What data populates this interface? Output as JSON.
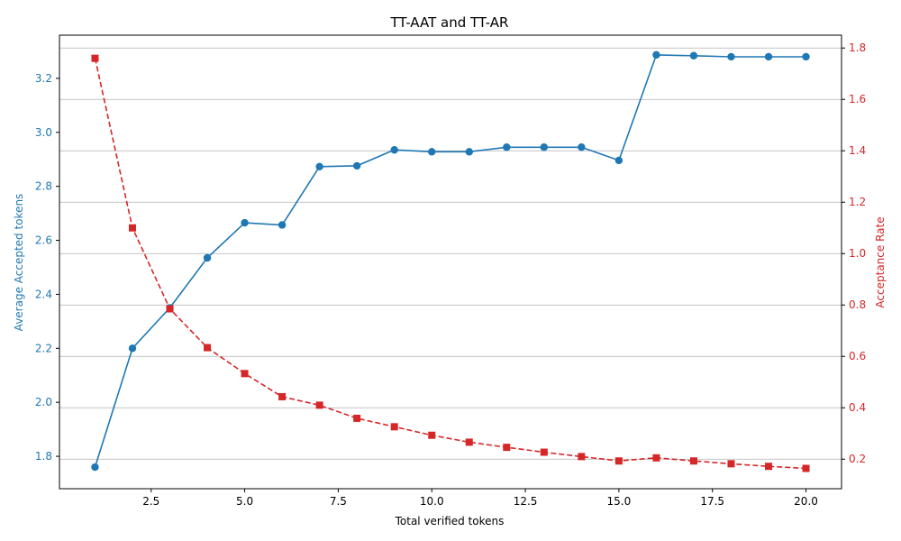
{
  "chart_data": {
    "type": "line",
    "title": "TT-AAT and TT-AR",
    "xlabel": "Total verified tokens",
    "ylabel_left": "Average Accepted tokens",
    "ylabel_right": "Acceptance Rate",
    "xlim": [
      0.05,
      20.95
    ],
    "ylim_left": [
      1.68,
      3.36
    ],
    "ylim_right": [
      0.085,
      1.85
    ],
    "x_ticks": [
      2.5,
      5.0,
      7.5,
      10.0,
      12.5,
      15.0,
      17.5,
      20.0
    ],
    "x_tick_labels": [
      "2.5",
      "5.0",
      "7.5",
      "10.0",
      "12.5",
      "15.0",
      "17.5",
      "20.0"
    ],
    "left_ticks": [
      1.8,
      2.0,
      2.2,
      2.4,
      2.6,
      2.8,
      3.0,
      3.2
    ],
    "left_tick_labels": [
      "1.8",
      "2.0",
      "2.2",
      "2.4",
      "2.6",
      "2.8",
      "3.0",
      "3.2"
    ],
    "right_ticks": [
      0.2,
      0.4,
      0.6,
      0.8,
      1.0,
      1.2,
      1.4,
      1.6,
      1.8
    ],
    "right_tick_labels": [
      "0.2",
      "0.4",
      "0.6",
      "0.8",
      "1.0",
      "1.2",
      "1.4",
      "1.6",
      "1.8"
    ],
    "grid": "horizontal lines on right axis",
    "x": [
      1,
      2,
      3,
      4,
      5,
      6,
      7,
      8,
      9,
      10,
      11,
      12,
      13,
      14,
      15,
      16,
      17,
      18,
      19,
      20
    ],
    "series": [
      {
        "axis": "left",
        "color": "#1f77b4",
        "marker": "circle",
        "line": "solid",
        "values": [
          1.76,
          2.2,
          2.35,
          2.535,
          2.665,
          2.657,
          2.873,
          2.876,
          2.935,
          2.928,
          2.928,
          2.945,
          2.945,
          2.945,
          2.896,
          3.287,
          3.284,
          3.28,
          3.28,
          3.28
        ]
      },
      {
        "axis": "right",
        "color": "#d62728",
        "marker": "square",
        "line": "dashed",
        "values": [
          1.76,
          1.1,
          0.785,
          0.634,
          0.533,
          0.443,
          0.41,
          0.359,
          0.326,
          0.293,
          0.266,
          0.246,
          0.227,
          0.21,
          0.193,
          0.205,
          0.193,
          0.182,
          0.172,
          0.164
        ]
      }
    ]
  }
}
